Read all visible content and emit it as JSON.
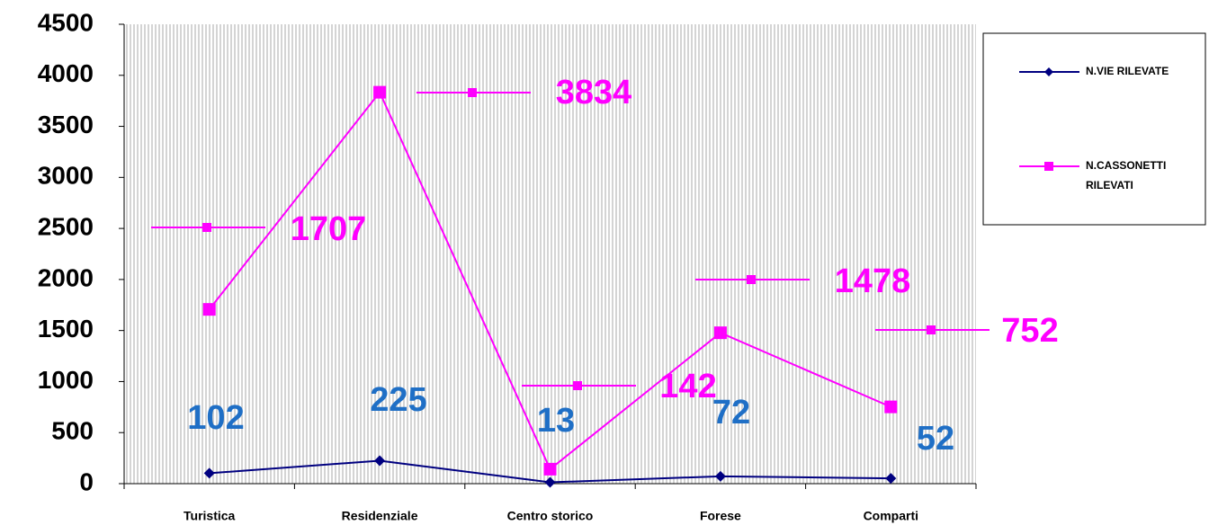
{
  "chart_data": {
    "type": "line",
    "categories": [
      "Turistica",
      "Residenziale",
      "Centro storico",
      "Forese",
      "Comparti"
    ],
    "series": [
      {
        "name": "N.VIE RILEVATE",
        "color": "#000080",
        "values": [
          102,
          225,
          13,
          72,
          52
        ],
        "label_color": "#1f6fc6"
      },
      {
        "name": "N.CASSONETTI RILEVATI",
        "color": "#ff00ff",
        "values": [
          1707,
          3834,
          142,
          1478,
          752
        ],
        "label_color": "#ff00ff"
      }
    ],
    "ylim": [
      0,
      4500
    ],
    "yticks": [
      0,
      500,
      1000,
      1500,
      2000,
      2500,
      3000,
      3500,
      4000,
      4500
    ],
    "legend": "right"
  }
}
